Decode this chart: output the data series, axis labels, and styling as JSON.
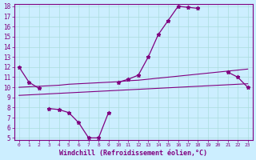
{
  "xlabel": "Windchill (Refroidissement éolien,°C)",
  "x_values": [
    0,
    1,
    2,
    3,
    4,
    5,
    6,
    7,
    8,
    9,
    10,
    11,
    12,
    13,
    14,
    15,
    16,
    17,
    18,
    19,
    20,
    21,
    22,
    23
  ],
  "line1_y": [
    12.0,
    10.5,
    9.9,
    null,
    null,
    null,
    null,
    null,
    null,
    null,
    10.5,
    10.8,
    11.2,
    13.0,
    15.2,
    16.6,
    18.0,
    17.9,
    17.8,
    null,
    null,
    11.5,
    11.0,
    10.0
  ],
  "line3_y": [
    10.0,
    10.05,
    10.1,
    10.15,
    10.2,
    10.3,
    10.35,
    10.4,
    10.45,
    10.5,
    10.55,
    10.65,
    10.7,
    10.8,
    10.9,
    11.0,
    11.1,
    11.2,
    11.3,
    11.4,
    11.5,
    11.6,
    11.7,
    11.8
  ],
  "line4_y": [
    9.2,
    9.25,
    9.3,
    9.35,
    9.4,
    9.45,
    9.5,
    9.55,
    9.6,
    9.65,
    9.7,
    9.75,
    9.8,
    9.85,
    9.9,
    9.95,
    10.0,
    10.05,
    10.1,
    10.15,
    10.2,
    10.25,
    10.3,
    10.35
  ],
  "line5_y": [
    null,
    null,
    null,
    7.9,
    7.8,
    7.5,
    6.5,
    5.0,
    5.0,
    7.5,
    null,
    null,
    null,
    null,
    null,
    null,
    null,
    null,
    null,
    null,
    null,
    null,
    null,
    null
  ],
  "line_color": "#800080",
  "bg_color": "#cceeff",
  "grid_color": "#aadddd",
  "ylim_min": 4.8,
  "ylim_max": 18.2,
  "xlim_min": -0.5,
  "xlim_max": 23.5,
  "yticks": [
    5,
    6,
    7,
    8,
    9,
    10,
    11,
    12,
    13,
    14,
    15,
    16,
    17,
    18
  ],
  "xticks": [
    0,
    1,
    2,
    3,
    4,
    5,
    6,
    7,
    8,
    9,
    10,
    11,
    12,
    13,
    14,
    15,
    16,
    17,
    18,
    19,
    20,
    21,
    22,
    23
  ],
  "tick_fontsize": 5.5,
  "xlabel_fontsize": 6.0
}
